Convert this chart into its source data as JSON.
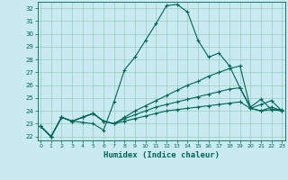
{
  "xlabel": "Humidex (Indice chaleur)",
  "bg_color": "#c8eaf0",
  "grid_color": "#99ccbb",
  "line_color": "#006655",
  "xlim": [
    -0.3,
    23.3
  ],
  "ylim": [
    21.7,
    32.5
  ],
  "yticks": [
    22,
    23,
    24,
    25,
    26,
    27,
    28,
    29,
    30,
    31,
    32
  ],
  "xticks": [
    0,
    1,
    2,
    3,
    4,
    5,
    6,
    7,
    8,
    9,
    10,
    11,
    12,
    13,
    14,
    15,
    16,
    17,
    18,
    19,
    20,
    21,
    22,
    23
  ],
  "series": [
    [
      22.8,
      22.0,
      23.5,
      23.2,
      23.1,
      23.0,
      22.5,
      24.7,
      27.2,
      28.2,
      29.5,
      30.8,
      32.2,
      32.3,
      31.7,
      29.5,
      28.2,
      28.5,
      27.5,
      25.8,
      24.3,
      24.9,
      24.1,
      24.1
    ],
    [
      22.8,
      22.0,
      23.5,
      23.2,
      23.5,
      23.8,
      23.2,
      23.0,
      23.5,
      24.0,
      24.4,
      24.8,
      25.2,
      25.6,
      26.0,
      26.3,
      26.7,
      27.0,
      27.3,
      27.5,
      24.2,
      24.5,
      24.8,
      24.0
    ],
    [
      22.8,
      22.0,
      23.5,
      23.2,
      23.5,
      23.8,
      23.2,
      23.0,
      23.4,
      23.7,
      24.0,
      24.3,
      24.5,
      24.7,
      24.9,
      25.1,
      25.3,
      25.5,
      25.7,
      25.8,
      24.2,
      24.0,
      24.3,
      24.0
    ],
    [
      22.8,
      22.0,
      23.5,
      23.2,
      23.5,
      23.8,
      23.2,
      23.0,
      23.2,
      23.4,
      23.6,
      23.8,
      24.0,
      24.1,
      24.2,
      24.3,
      24.4,
      24.5,
      24.6,
      24.7,
      24.2,
      24.0,
      24.1,
      24.0
    ]
  ]
}
